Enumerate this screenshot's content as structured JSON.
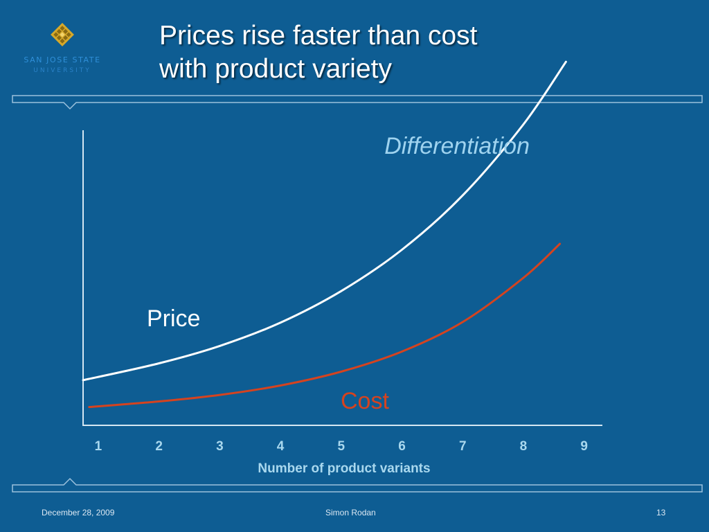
{
  "slide": {
    "title_lines": [
      "Prices rise faster than cost",
      "with product variety"
    ],
    "logo": {
      "icon": "diamond-grid-icon",
      "line1": "SAN JOSE STATE",
      "line2": "UNIVERSITY"
    }
  },
  "chart_data": {
    "type": "line",
    "x": [
      1,
      2,
      3,
      4,
      5,
      6,
      7,
      8,
      9
    ],
    "xlabel": "Number of product variants",
    "xlim": [
      0.75,
      9.3
    ],
    "ylim": [
      0,
      100
    ],
    "grid": false,
    "series": [
      {
        "name": "Price",
        "color": "#ffffff",
        "x": [
          0.75,
          2,
          3,
          4,
          5,
          6,
          7,
          8,
          8.7
        ],
        "values": [
          15.3,
          21.0,
          26.9,
          34.8,
          45.5,
          59.5,
          77.9,
          102.0,
          123.2
        ]
      },
      {
        "name": "Cost",
        "color": "#d5431f",
        "x": [
          0.85,
          2,
          3,
          4,
          5,
          6,
          7,
          8,
          8.6
        ],
        "values": [
          6.2,
          8.1,
          10.3,
          13.5,
          18.2,
          25.0,
          35.0,
          50.0,
          61.5
        ]
      }
    ],
    "annotations": [
      {
        "text": "Differentiation",
        "color": "#9fd3ef"
      },
      {
        "text": "Price",
        "color": "#ffffff"
      },
      {
        "text": "Cost",
        "color": "#d5431f"
      }
    ],
    "tick_color": "#a9d8ee"
  },
  "footer": {
    "date": "December 28, 2009",
    "author": "Simon Rodan",
    "page": "13"
  }
}
